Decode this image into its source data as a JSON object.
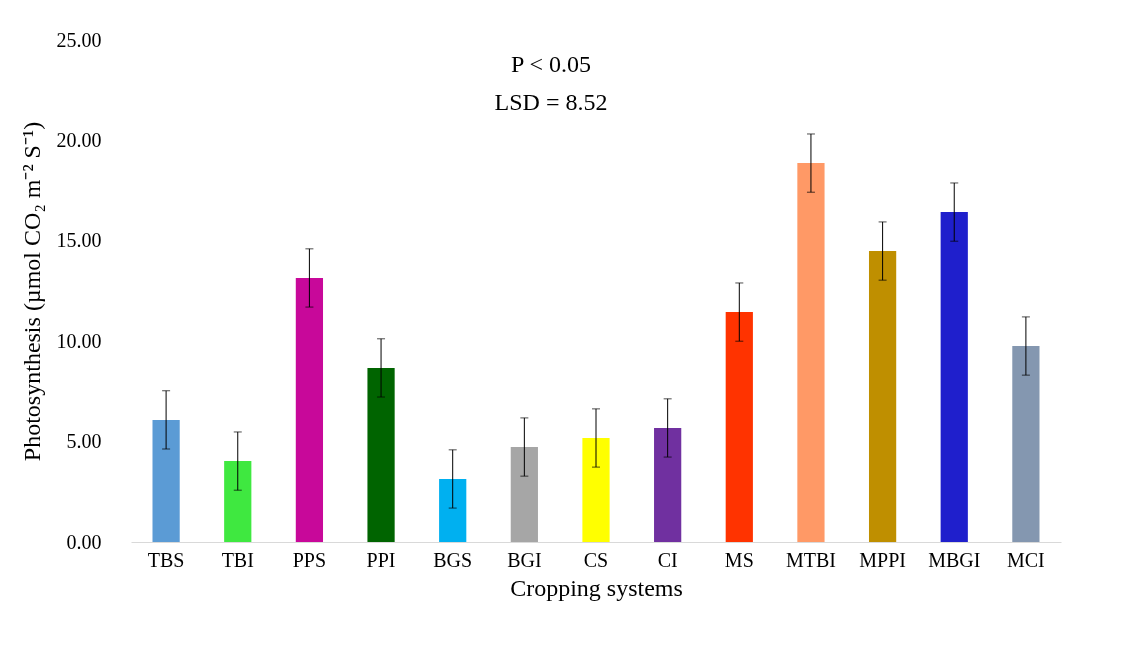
{
  "chart_data": {
    "type": "bar",
    "xlabel": "Cropping systems",
    "ylabel": "Photosynthesis (µmol CO₂ m⁻² S⁻¹)",
    "categories": [
      "TBS",
      "TBI",
      "PPS",
      "PPI",
      "BGS",
      "BGI",
      "CS",
      "CI",
      "MS",
      "MTBI",
      "MPPI",
      "MBGI",
      "MCI"
    ],
    "values": [
      6.08,
      4.03,
      13.15,
      8.67,
      3.14,
      4.73,
      5.18,
      5.68,
      11.45,
      18.87,
      14.49,
      16.43,
      9.76
    ],
    "errors": [
      1.45,
      1.45,
      1.45,
      1.45,
      1.45,
      1.45,
      1.45,
      1.45,
      1.45,
      1.45,
      1.45,
      1.45,
      1.45
    ],
    "colors": [
      "#5b9bd5",
      "#3fe840",
      "#c8089a",
      "#006400",
      "#00b0f0",
      "#a6a6a6",
      "#ffff00",
      "#7030a0",
      "#ff3300",
      "#ff9966",
      "#bf8f00",
      "#1f1fcc",
      "#8497b0"
    ],
    "ylim": [
      0,
      25
    ],
    "yticks": [
      {
        "value": 0,
        "label": "0.00"
      },
      {
        "value": 5,
        "label": "5.00"
      },
      {
        "value": 10,
        "label": "10.00"
      },
      {
        "value": 15,
        "label": "15.00"
      },
      {
        "value": 20,
        "label": "20.00"
      },
      {
        "value": 25,
        "label": "25.00"
      }
    ],
    "annotations": [
      "P < 0.05",
      "LSD = 8.52"
    ],
    "grid": false
  }
}
